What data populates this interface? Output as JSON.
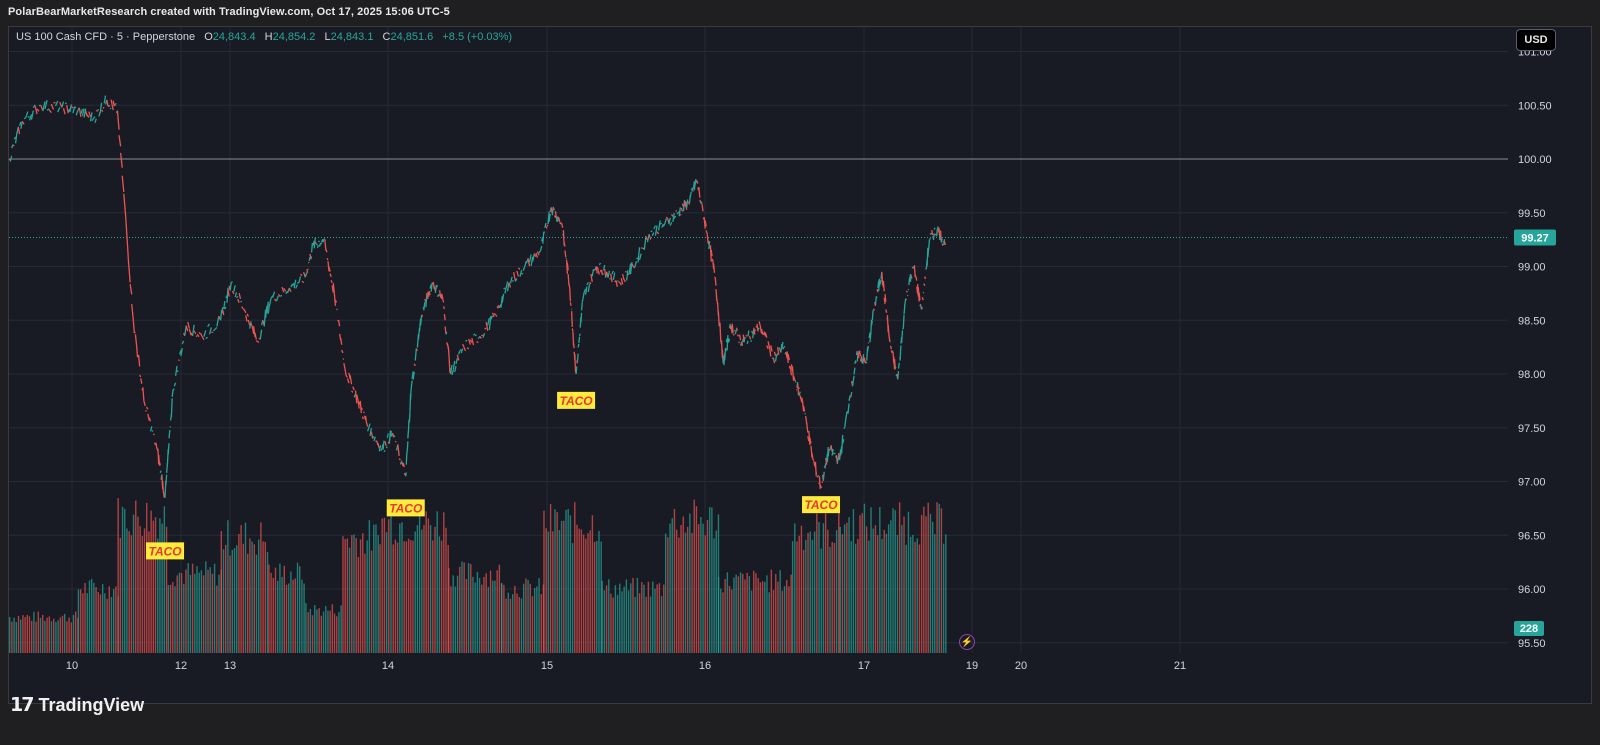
{
  "header": {
    "caption": "PolarBearMarketResearch created with TradingView.com, Oct 17, 2025 15:06 UTC-5"
  },
  "legend": {
    "symbol": "US 100 Cash CFD · 5 · Pepperstone",
    "open_label": "O",
    "open": "24,843.4",
    "high_label": "H",
    "high": "24,854.2",
    "low_label": "L",
    "low": "24,843.1",
    "close_label": "C",
    "close": "24,851.6",
    "change": "+8.5 (+0.03%)"
  },
  "currency_button": "USD",
  "footer": {
    "brand": "TradingView"
  },
  "colors": {
    "up": "#26a69a",
    "down": "#ef5350",
    "bg": "#181b24",
    "grid": "#262a35",
    "label_bg": "#ffeb3b",
    "label_text": "#e53935"
  },
  "chart_data": {
    "type": "line",
    "title": "",
    "x_tick_labels": [
      "10",
      "12",
      "13",
      "14",
      "15",
      "16",
      "17",
      "19",
      "20",
      "21"
    ],
    "y_tick_labels": [
      "101.00",
      "100.50",
      "100.00",
      "99.50",
      "99.00",
      "98.50",
      "98.00",
      "97.50",
      "97.00",
      "96.50",
      "96.00",
      "95.50"
    ],
    "ylim": [
      95.5,
      101.0
    ],
    "grid": true,
    "reference_line": 100.0,
    "last_price": 99.27,
    "last_price_label": "99.27",
    "volume_label": "228",
    "price_path": [
      {
        "x": 9.0,
        "y": 100.0
      },
      {
        "x": 9.25,
        "y": 100.35
      },
      {
        "x": 9.6,
        "y": 100.5
      },
      {
        "x": 10.0,
        "y": 100.48
      },
      {
        "x": 10.3,
        "y": 100.45
      },
      {
        "x": 10.6,
        "y": 100.38
      },
      {
        "x": 10.85,
        "y": 100.55
      },
      {
        "x": 11.05,
        "y": 100.45
      },
      {
        "x": 11.35,
        "y": 98.5
      },
      {
        "x": 11.55,
        "y": 97.75
      },
      {
        "x": 11.8,
        "y": 97.3
      },
      {
        "x": 11.95,
        "y": 96.85
      },
      {
        "x": 12.1,
        "y": 97.85
      },
      {
        "x": 12.35,
        "y": 98.45
      },
      {
        "x": 12.65,
        "y": 98.35
      },
      {
        "x": 13.0,
        "y": 98.5
      },
      {
        "x": 13.2,
        "y": 98.85
      },
      {
        "x": 13.45,
        "y": 98.6
      },
      {
        "x": 13.7,
        "y": 98.3
      },
      {
        "x": 13.95,
        "y": 98.7
      },
      {
        "x": 14.3,
        "y": 98.8
      },
      {
        "x": 14.6,
        "y": 98.9
      },
      {
        "x": 14.75,
        "y": 99.2
      },
      {
        "x": 14.95,
        "y": 99.25
      },
      {
        "x": 15.15,
        "y": 98.75
      },
      {
        "x": 15.35,
        "y": 98.05
      },
      {
        "x": 15.6,
        "y": 97.75
      },
      {
        "x": 15.8,
        "y": 97.5
      },
      {
        "x": 16.05,
        "y": 97.3
      },
      {
        "x": 16.25,
        "y": 97.45
      },
      {
        "x": 16.5,
        "y": 97.05
      },
      {
        "x": 16.6,
        "y": 97.85
      },
      {
        "x": 16.8,
        "y": 98.55
      },
      {
        "x": 17.0,
        "y": 98.85
      },
      {
        "x": 17.2,
        "y": 98.7
      },
      {
        "x": 17.35,
        "y": 98.0
      },
      {
        "x": 17.6,
        "y": 98.25
      },
      {
        "x": 17.9,
        "y": 98.35
      },
      {
        "x": 18.2,
        "y": 98.55
      },
      {
        "x": 18.45,
        "y": 98.85
      },
      {
        "x": 18.75,
        "y": 99.0
      },
      {
        "x": 19.05,
        "y": 99.15
      },
      {
        "x": 19.25,
        "y": 99.55
      },
      {
        "x": 19.45,
        "y": 99.4
      },
      {
        "x": 19.6,
        "y": 98.8
      },
      {
        "x": 19.72,
        "y": 98.0
      },
      {
        "x": 19.85,
        "y": 98.7
      },
      {
        "x": 20.1,
        "y": 99.0
      },
      {
        "x": 20.3,
        "y": 98.95
      },
      {
        "x": 20.55,
        "y": 98.85
      },
      {
        "x": 20.8,
        "y": 99.0
      },
      {
        "x": 21.1,
        "y": 99.3
      },
      {
        "x": 21.4,
        "y": 99.4
      },
      {
        "x": 21.65,
        "y": 99.5
      },
      {
        "x": 21.85,
        "y": 99.6
      },
      {
        "x": 22.0,
        "y": 99.8
      },
      {
        "x": 22.2,
        "y": 99.3
      },
      {
        "x": 22.35,
        "y": 98.9
      },
      {
        "x": 22.5,
        "y": 98.1
      },
      {
        "x": 22.65,
        "y": 98.45
      },
      {
        "x": 22.85,
        "y": 98.3
      },
      {
        "x": 23.0,
        "y": 98.35
      },
      {
        "x": 23.2,
        "y": 98.45
      },
      {
        "x": 23.45,
        "y": 98.15
      },
      {
        "x": 23.65,
        "y": 98.25
      },
      {
        "x": 23.85,
        "y": 97.95
      },
      {
        "x": 24.0,
        "y": 97.75
      },
      {
        "x": 24.2,
        "y": 97.2
      },
      {
        "x": 24.35,
        "y": 96.95
      },
      {
        "x": 24.5,
        "y": 97.3
      },
      {
        "x": 24.7,
        "y": 97.2
      },
      {
        "x": 24.9,
        "y": 97.8
      },
      {
        "x": 25.05,
        "y": 98.2
      },
      {
        "x": 25.2,
        "y": 98.1
      },
      {
        "x": 25.35,
        "y": 98.6
      },
      {
        "x": 25.5,
        "y": 98.95
      },
      {
        "x": 25.65,
        "y": 98.3
      },
      {
        "x": 25.8,
        "y": 97.95
      },
      {
        "x": 25.95,
        "y": 98.7
      },
      {
        "x": 26.1,
        "y": 99.0
      },
      {
        "x": 26.25,
        "y": 98.6
      },
      {
        "x": 26.4,
        "y": 99.25
      },
      {
        "x": 26.55,
        "y": 99.35
      },
      {
        "x": 26.7,
        "y": 99.2
      }
    ],
    "annotations": [
      {
        "text": "TACO",
        "x": 11.95,
        "y": 96.35
      },
      {
        "text": "TACO",
        "x": 16.5,
        "y": 96.75
      },
      {
        "text": "TACO",
        "x": 19.72,
        "y": 97.75
      },
      {
        "text": "TACO",
        "x": 24.35,
        "y": 96.78
      }
    ],
    "volume": [
      {
        "from": 9.0,
        "to": 10.3,
        "level": 0.25
      },
      {
        "from": 10.3,
        "to": 11.05,
        "level": 0.45
      },
      {
        "from": 11.05,
        "to": 12.0,
        "level": 0.95
      },
      {
        "from": 12.0,
        "to": 13.0,
        "level": 0.55
      },
      {
        "from": 13.0,
        "to": 13.9,
        "level": 0.8
      },
      {
        "from": 13.9,
        "to": 14.6,
        "level": 0.55
      },
      {
        "from": 14.6,
        "to": 15.3,
        "level": 0.3
      },
      {
        "from": 15.3,
        "to": 16.0,
        "level": 0.8
      },
      {
        "from": 16.0,
        "to": 17.3,
        "level": 0.9
      },
      {
        "from": 17.3,
        "to": 18.3,
        "level": 0.55
      },
      {
        "from": 18.3,
        "to": 19.1,
        "level": 0.45
      },
      {
        "from": 19.1,
        "to": 20.2,
        "level": 0.9
      },
      {
        "from": 20.2,
        "to": 21.4,
        "level": 0.45
      },
      {
        "from": 21.4,
        "to": 22.4,
        "level": 0.92
      },
      {
        "from": 22.4,
        "to": 23.8,
        "level": 0.5
      },
      {
        "from": 23.8,
        "to": 24.7,
        "level": 0.85
      },
      {
        "from": 24.7,
        "to": 26.7,
        "level": 0.9
      }
    ]
  }
}
